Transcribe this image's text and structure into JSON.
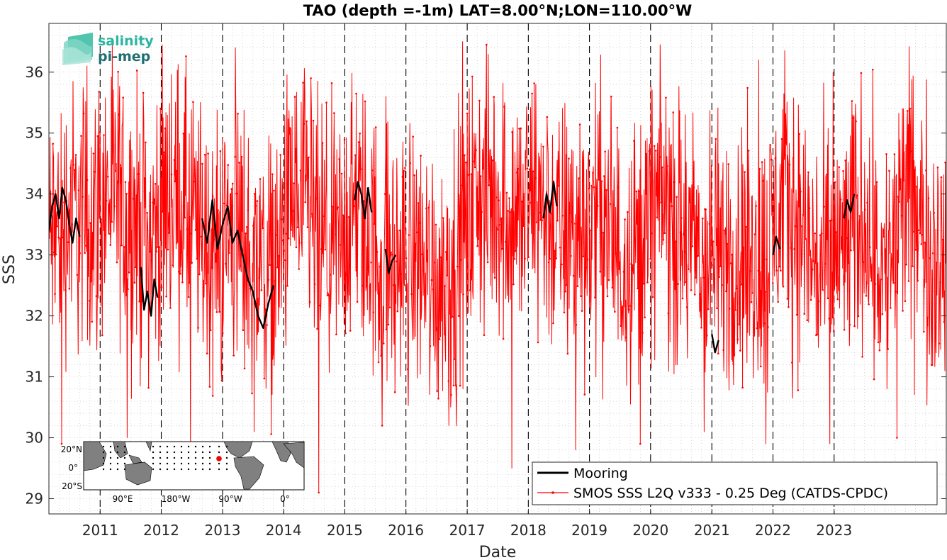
{
  "chart_data": {
    "type": "line",
    "title": "TAO (depth =-1m) LAT=8.00°N;LON=110.00°W",
    "xlabel": "Date",
    "ylabel": "SSS",
    "xlim": [
      "2010-03-01",
      "2024-11-01"
    ],
    "ylim": [
      28.75,
      36.8
    ],
    "x_tick_labels": [
      "2011",
      "2012",
      "2013",
      "2014",
      "2015",
      "2016",
      "2017",
      "2018",
      "2019",
      "2020",
      "2021",
      "2022",
      "2023"
    ],
    "y_tick_values": [
      29,
      30,
      31,
      32,
      33,
      34,
      35,
      36
    ],
    "grid": "minor dotted",
    "legend_position": "bottom-right",
    "year_boundaries": [
      "2011-01-01",
      "2012-01-01",
      "2013-01-01",
      "2014-01-01",
      "2015-01-01",
      "2016-01-01",
      "2017-01-01",
      "2018-01-01",
      "2019-01-01",
      "2020-01-01",
      "2021-01-01",
      "2022-01-01",
      "2023-01-01"
    ],
    "series": [
      {
        "name": "Mooring",
        "color": "#000000",
        "style": "thick line",
        "segments": [
          {
            "x": [
              "2010-03-01",
              "2010-03-20",
              "2010-04-10",
              "2010-05-01",
              "2010-05-20",
              "2010-06-10",
              "2010-07-01",
              "2010-07-20",
              "2010-08-10",
              "2010-09-01"
            ],
            "y": [
              33.4,
              33.8,
              34.0,
              33.6,
              34.1,
              33.9,
              33.5,
              33.2,
              33.6,
              33.3
            ]
          },
          {
            "x": [
              "2011-09-01",
              "2011-09-20",
              "2011-10-10",
              "2011-11-01",
              "2011-11-20",
              "2011-12-10"
            ],
            "y": [
              32.8,
              32.1,
              32.4,
              32.0,
              32.6,
              32.3
            ]
          },
          {
            "x": [
              "2012-09-01",
              "2012-10-01",
              "2012-11-01",
              "2012-12-01",
              "2013-01-01",
              "2013-02-01",
              "2013-03-01",
              "2013-04-01",
              "2013-05-01",
              "2013-06-01",
              "2013-07-01",
              "2013-08-01",
              "2013-09-01",
              "2013-10-01",
              "2013-11-01"
            ],
            "y": [
              33.6,
              33.2,
              33.9,
              33.1,
              33.5,
              33.8,
              33.2,
              33.4,
              33.0,
              32.6,
              32.4,
              32.0,
              31.8,
              32.2,
              32.5
            ]
          },
          {
            "x": [
              "2015-03-01",
              "2015-03-20",
              "2015-04-10",
              "2015-05-01",
              "2015-05-20",
              "2015-06-10"
            ],
            "y": [
              33.9,
              34.2,
              34.0,
              33.6,
              34.1,
              33.7
            ]
          },
          {
            "x": [
              "2015-09-01",
              "2015-09-20",
              "2015-10-10",
              "2015-11-01"
            ],
            "y": [
              33.1,
              32.7,
              32.9,
              33.0
            ]
          },
          {
            "x": [
              "2018-04-01",
              "2018-04-20",
              "2018-05-10",
              "2018-06-01",
              "2018-06-20"
            ],
            "y": [
              33.6,
              34.0,
              33.7,
              34.2,
              33.8
            ]
          },
          {
            "x": [
              "2021-01-01",
              "2021-01-20",
              "2021-02-10"
            ],
            "y": [
              31.7,
              31.4,
              31.6
            ]
          },
          {
            "x": [
              "2022-01-01",
              "2022-01-20",
              "2022-02-10"
            ],
            "y": [
              33.0,
              33.3,
              33.1
            ]
          },
          {
            "x": [
              "2023-03-01",
              "2023-03-20",
              "2023-04-10",
              "2023-05-01"
            ],
            "y": [
              33.6,
              33.9,
              33.7,
              34.0
            ]
          }
        ]
      },
      {
        "name": "SMOS SSS L2Q v333 - 0.25 Deg (CATDS-CPDC)",
        "color": "#ff0000",
        "style": "thin line with dot markers",
        "anchors": {
          "x": [
            "2010-03-01",
            "2010-07-01",
            "2010-11-01",
            "2011-03-01",
            "2011-07-01",
            "2011-11-01",
            "2012-03-01",
            "2012-07-01",
            "2012-11-01",
            "2013-03-01",
            "2013-07-01",
            "2013-11-01",
            "2014-03-01",
            "2014-07-01",
            "2014-11-01",
            "2015-03-01",
            "2015-07-01",
            "2015-11-01",
            "2016-03-01",
            "2016-07-01",
            "2016-11-01",
            "2017-03-01",
            "2017-07-01",
            "2017-11-01",
            "2018-03-01",
            "2018-07-01",
            "2018-11-01",
            "2019-03-01",
            "2019-07-01",
            "2019-11-01",
            "2020-03-01",
            "2020-07-01",
            "2020-11-01",
            "2021-03-01",
            "2021-07-01",
            "2021-11-01",
            "2022-03-01",
            "2022-07-01",
            "2022-11-01",
            "2023-03-01",
            "2023-07-01",
            "2023-11-01",
            "2024-03-01",
            "2024-07-01",
            "2024-11-01"
          ],
          "y": [
            33.2,
            33.7,
            33.5,
            34.0,
            33.6,
            33.3,
            34.1,
            33.5,
            33.0,
            33.4,
            33.0,
            32.7,
            34.0,
            33.4,
            33.0,
            33.8,
            33.1,
            32.8,
            33.0,
            32.6,
            32.9,
            34.0,
            33.9,
            33.6,
            33.9,
            33.3,
            33.4,
            33.7,
            33.0,
            33.2,
            34.0,
            33.2,
            33.0,
            32.9,
            33.0,
            32.8,
            34.0,
            33.3,
            32.7,
            33.1,
            33.8,
            32.6,
            34.0,
            33.3,
            32.9
          ]
        },
        "noise_amplitude": 1.1,
        "spike_values": {
          "max": [
            36.1,
            36.3,
            36.4,
            35.9,
            35.6,
            36.5,
            35.8,
            35.6,
            35.3,
            36.2,
            36.0,
            35.4
          ],
          "min": [
            29.9,
            30.0,
            29.9,
            30.1,
            29.1,
            30.2,
            30.2,
            29.5,
            29.8,
            29.9,
            30.1,
            29.9,
            29.9,
            30.0
          ]
        }
      }
    ]
  },
  "legend": {
    "mooring_label": "Mooring",
    "smos_label": "SMOS SSS L2Q v333 - 0.25 Deg (CATDS-CPDC)"
  },
  "logo": {
    "line1": "salinity",
    "line2": "pi-mep",
    "color_line1": "#2bb5a0",
    "color_line2": "#1f6e73"
  },
  "inset_map": {
    "lat_labels": [
      "20°N",
      "0°",
      "20°S"
    ],
    "lon_labels": [
      "90°E",
      "180°W",
      "90°W",
      "0°"
    ],
    "ocean_color": "#ffffff",
    "land_color": "#808080",
    "mooring_marker_color": "#ff0000"
  }
}
